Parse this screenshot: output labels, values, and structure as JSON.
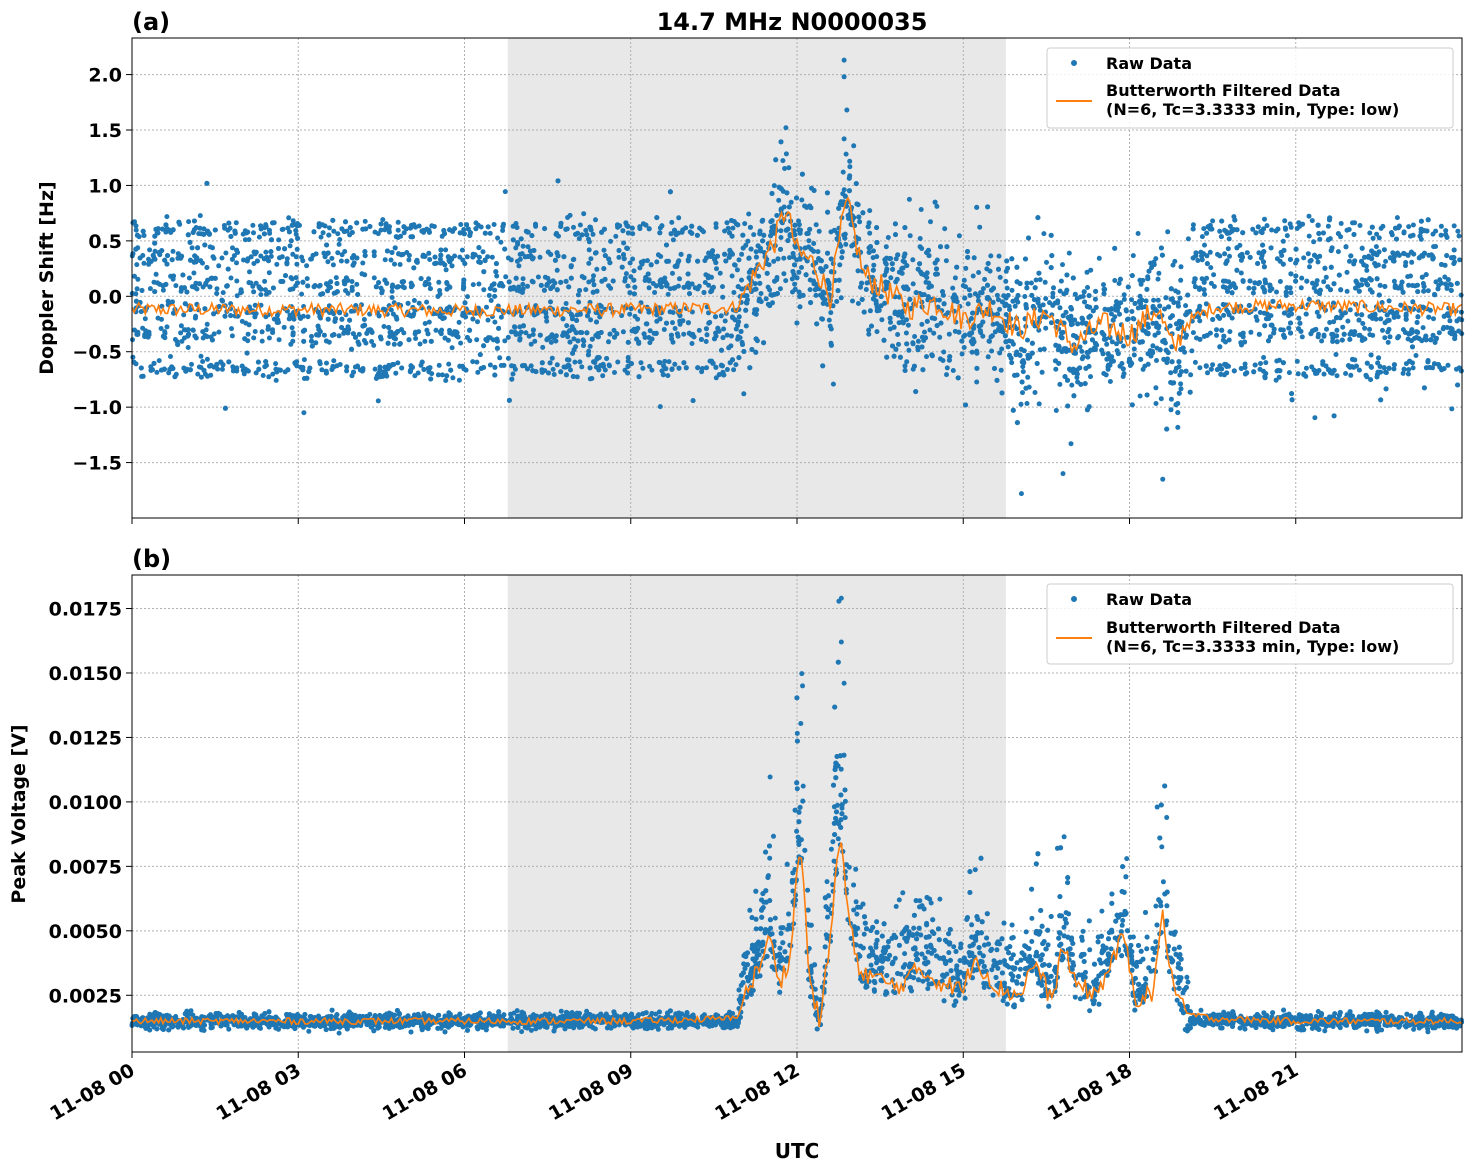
{
  "figure": {
    "title": "14.7 MHz N0000035",
    "xlabel": "UTC"
  },
  "colors": {
    "raw": "#1f77b4",
    "filtered": "#ff7f0e",
    "shade": "#e8e8e8",
    "grid": "#b0b0b0"
  },
  "chart_data": [
    {
      "type": "scatter",
      "panel_label": "(a)",
      "ylabel": "Doppler Shift [Hz]",
      "xlim": [
        "2023-11-08T00:00",
        "2023-11-09T00:00"
      ],
      "ylim": [
        -2.0,
        2.33
      ],
      "x_ticks": [
        "11-08 00",
        "11-08 03",
        "11-08 06",
        "11-08 09",
        "11-08 12",
        "11-08 15",
        "11-08 18",
        "11-08 21"
      ],
      "y_ticks": [
        "2.0",
        "1.5",
        "1.0",
        "0.5",
        "0.0",
        "−0.5",
        "−1.0",
        "−1.5"
      ],
      "y_tick_values": [
        2.0,
        1.5,
        1.0,
        0.5,
        0.0,
        -0.5,
        -1.0,
        -1.5
      ],
      "shaded_interval_hours": [
        6.78,
        15.77
      ],
      "grid": true,
      "legend_position": "top-right",
      "series": [
        {
          "name": "Raw Data",
          "kind": "scatter",
          "description_values": {
            "quiet_bands_hz": [
              -0.65,
              -0.35,
              -0.15,
              0.1,
              0.35,
              0.6
            ],
            "max": 2.13,
            "min": -1.78
          }
        },
        {
          "name": "Butterworth Filtered Data\n(N=6, Tc=3.3333 min, Type: low)",
          "kind": "line",
          "hours": [
            0,
            3,
            6,
            9,
            10.9,
            11.3,
            11.6,
            11.8,
            12.0,
            12.3,
            12.6,
            12.8,
            12.9,
            13.2,
            13.6,
            14.0,
            14.5,
            15.0,
            15.5,
            16.0,
            16.5,
            17.0,
            17.5,
            18.0,
            18.5,
            18.8,
            19.0,
            19.5,
            21,
            24
          ],
          "values": [
            -0.12,
            -0.12,
            -0.13,
            -0.12,
            -0.1,
            0.25,
            0.5,
            0.8,
            0.4,
            0.3,
            0.0,
            0.6,
            0.85,
            0.2,
            0.05,
            -0.1,
            -0.05,
            -0.2,
            -0.1,
            -0.3,
            -0.15,
            -0.45,
            -0.25,
            -0.35,
            -0.1,
            -0.5,
            -0.25,
            -0.1,
            -0.08,
            -0.12
          ]
        }
      ]
    },
    {
      "type": "scatter",
      "panel_label": "(b)",
      "ylabel": "Peak Voltage [V]",
      "xlabel": "UTC",
      "xlim": [
        "2023-11-08T00:00",
        "2023-11-09T00:00"
      ],
      "ylim": [
        0.0003,
        0.0188
      ],
      "x_ticks": [
        "11-08 00",
        "11-08 03",
        "11-08 06",
        "11-08 09",
        "11-08 12",
        "11-08 15",
        "11-08 18",
        "11-08 21"
      ],
      "y_ticks": [
        "0.0175",
        "0.0150",
        "0.0125",
        "0.0100",
        "0.0075",
        "0.0050",
        "0.0025"
      ],
      "y_tick_values": [
        0.0175,
        0.015,
        0.0125,
        0.01,
        0.0075,
        0.005,
        0.0025
      ],
      "shaded_interval_hours": [
        6.78,
        15.77
      ],
      "grid": true,
      "legend_position": "top-right",
      "series": [
        {
          "name": "Raw Data",
          "kind": "scatter",
          "description_values": {
            "baseline": 0.0015,
            "max": 0.0179
          }
        },
        {
          "name": "Butterworth Filtered Data\n(N=6, Tc=3.3333 min, Type: low)",
          "kind": "line",
          "hours": [
            0,
            3,
            6,
            9,
            10.9,
            11.1,
            11.3,
            11.5,
            11.7,
            11.9,
            12.0,
            12.1,
            12.2,
            12.4,
            12.6,
            12.7,
            12.8,
            12.9,
            13.1,
            13.4,
            13.8,
            14.2,
            14.6,
            15.0,
            15.2,
            15.6,
            16.0,
            16.3,
            16.6,
            16.8,
            17.0,
            17.4,
            17.9,
            18.1,
            18.4,
            18.6,
            18.8,
            19.0,
            19.5,
            21,
            24
          ],
          "values": [
            0.0015,
            0.0015,
            0.0015,
            0.0015,
            0.0016,
            0.0027,
            0.0035,
            0.0047,
            0.003,
            0.0042,
            0.0075,
            0.008,
            0.0035,
            0.0015,
            0.0045,
            0.0075,
            0.0085,
            0.006,
            0.0035,
            0.0032,
            0.0028,
            0.0035,
            0.003,
            0.0027,
            0.004,
            0.0028,
            0.0025,
            0.0038,
            0.0022,
            0.0045,
            0.003,
            0.0025,
            0.0048,
            0.0024,
            0.0025,
            0.0055,
            0.0028,
            0.0018,
            0.0016,
            0.0015,
            0.0015
          ]
        }
      ]
    }
  ]
}
